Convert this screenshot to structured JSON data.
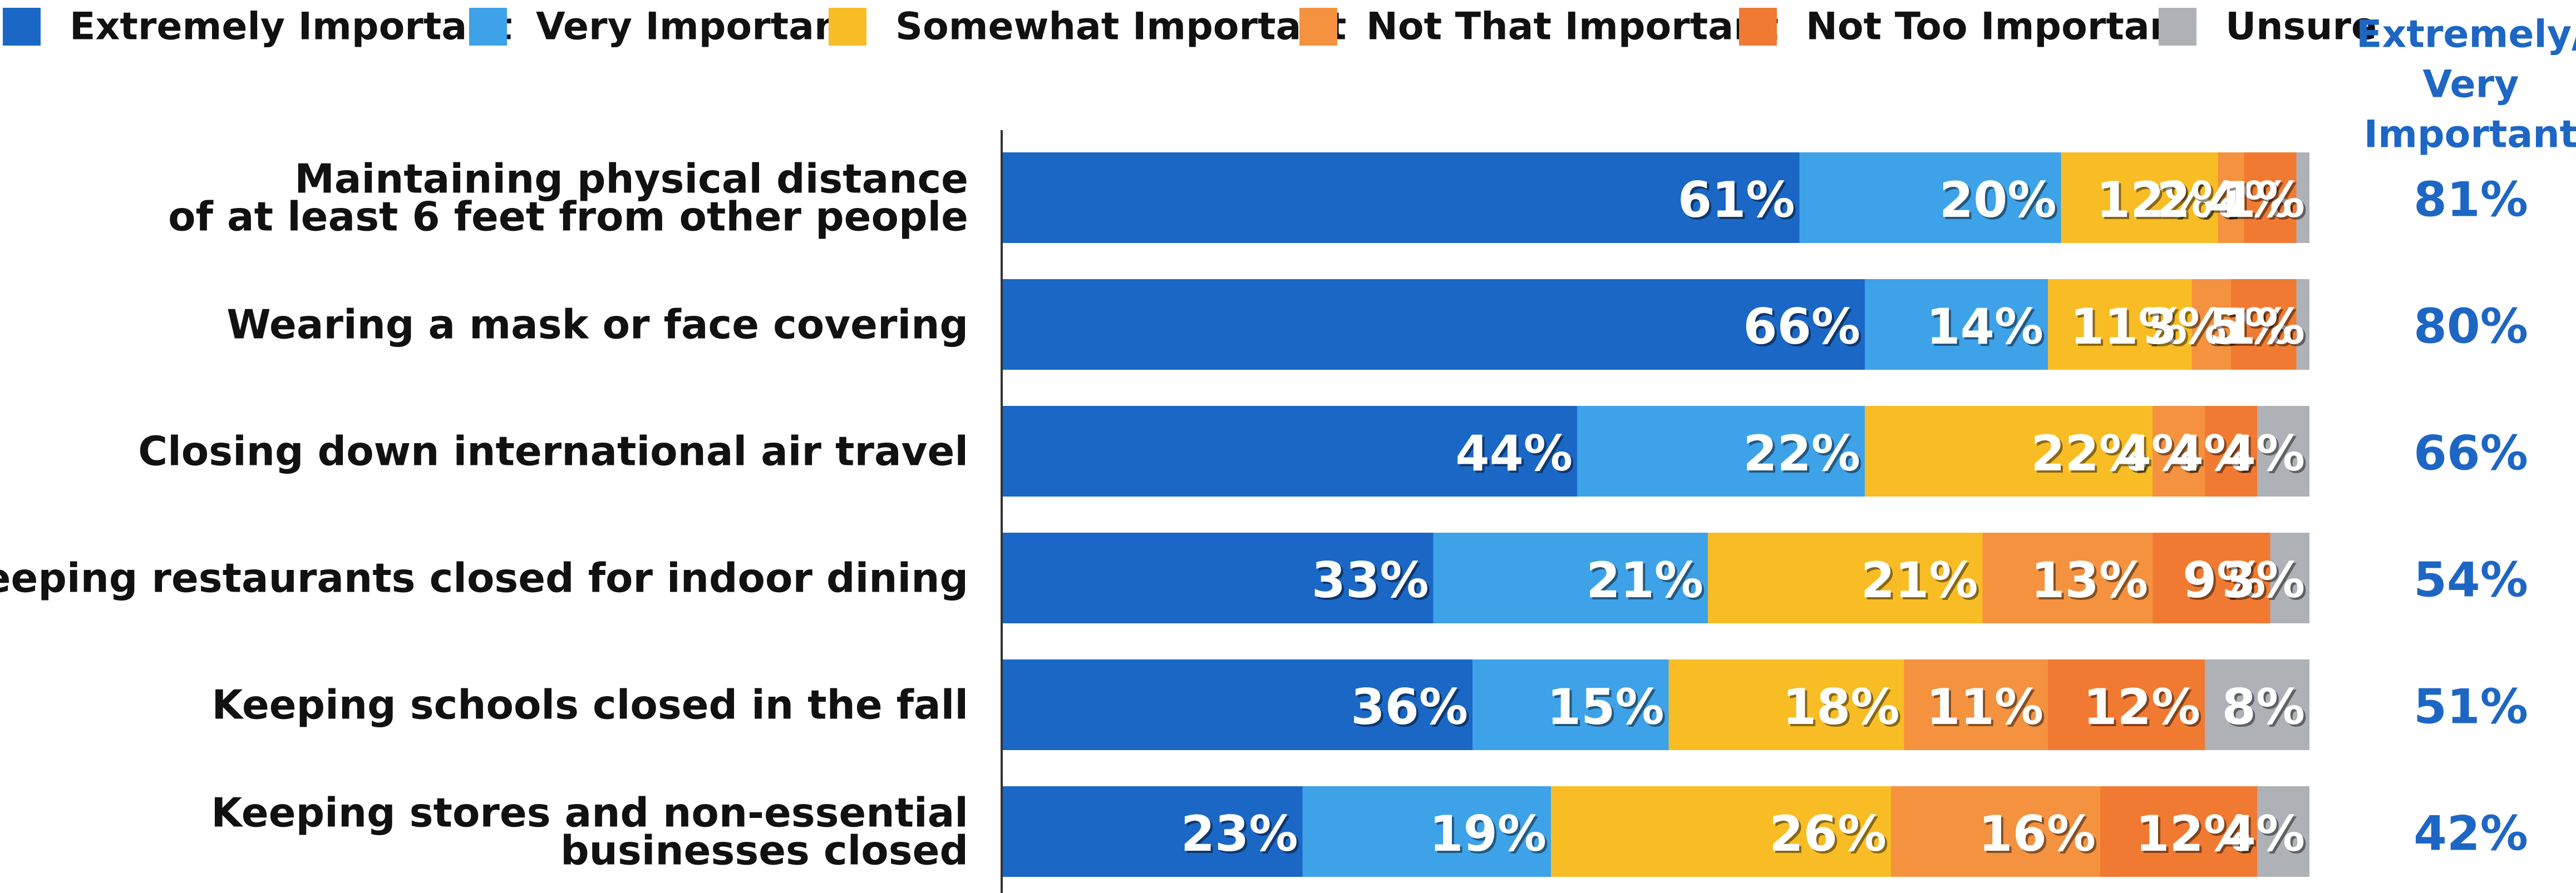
{
  "chart_data": {
    "type": "bar",
    "orientation": "horizontal",
    "stacked": true,
    "title": "",
    "xlabel": "",
    "ylabel": "",
    "xlim": [
      0,
      100
    ],
    "grid": false,
    "legend_position": "top",
    "categories": [
      [
        "Maintaining physical distance",
        "of at least 6 feet from other people"
      ],
      [
        "Wearing a mask or face covering"
      ],
      [
        "Closing down international air travel"
      ],
      [
        "Keeping restaurants closed for indoor dining"
      ],
      [
        "Keeping schools closed in the fall"
      ],
      [
        "Keeping stores and non-essential",
        "businesses closed"
      ]
    ],
    "series": [
      {
        "name": "Extremely Important",
        "color": "#1a67c6",
        "values": [
          61,
          66,
          44,
          33,
          36,
          23
        ],
        "labels": [
          "61%",
          "66%",
          "44%",
          "33%",
          "36%",
          "23%"
        ]
      },
      {
        "name": "Very Important",
        "color": "#3ea2e9",
        "values": [
          20,
          14,
          22,
          21,
          15,
          19
        ],
        "labels": [
          "20%",
          "14%",
          "22%",
          "21%",
          "15%",
          "19%"
        ]
      },
      {
        "name": "Somewhat Important",
        "color": "#f8bd25",
        "values": [
          12,
          11,
          22,
          21,
          18,
          26
        ],
        "labels": [
          "12%",
          "11%",
          "22%",
          "21%",
          "18%",
          "26%"
        ]
      },
      {
        "name": "Not That Important",
        "color": "#f49240",
        "values": [
          2,
          3,
          4,
          13,
          11,
          16
        ],
        "labels": [
          "2%",
          "3%",
          "4%",
          "13%",
          "11%",
          "16%"
        ]
      },
      {
        "name": "Not Too Important",
        "color": "#f17a32",
        "values": [
          4,
          5,
          4,
          9,
          12,
          12
        ],
        "labels": [
          "4%",
          "5%",
          "4%",
          "9%",
          "12%",
          "12%"
        ]
      },
      {
        "name": "Unsure",
        "color": "#aeb1b6",
        "values": [
          1,
          1,
          4,
          3,
          8,
          4
        ],
        "labels": [
          "1%",
          "1%",
          "4%",
          "3%",
          "8%",
          "4%"
        ]
      }
    ],
    "totals": {
      "header": [
        "Extremely/",
        "Very",
        "Important"
      ],
      "color": "#1d66c4",
      "values": [
        "81%",
        "80%",
        "66%",
        "54%",
        "51%",
        "42%"
      ]
    }
  }
}
